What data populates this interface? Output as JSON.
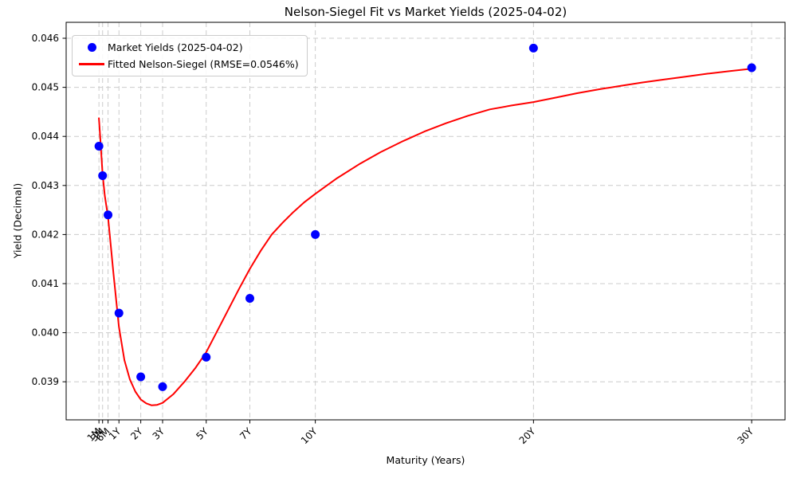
{
  "figure": {
    "background_color": "#ffffff",
    "title": "Nelson-Siegel Fit vs Market Yields (2025-04-02)",
    "xlabel": "Maturity (Years)",
    "ylabel": "Yield (Decimal)"
  },
  "legend": {
    "position": "upper left",
    "entries": [
      {
        "label": "Market Yields (2025-04-02)",
        "marker": "dot",
        "color": "#0000ff"
      },
      {
        "label": "Fitted Nelson-Siegel (RMSE=0.0546%)",
        "marker": "line",
        "color": "#ff0000"
      }
    ]
  },
  "chart_data": {
    "type": "scatter",
    "title": "Nelson-Siegel Fit vs Market Yields (2025-04-02)",
    "xlabel": "Maturity (Years)",
    "ylabel": "Yield (Decimal)",
    "grid": true,
    "grid_color": "#cccccc",
    "spine_color": "#000000",
    "xlim": [
      -1.42,
      31.53
    ],
    "ylim": [
      0.038224,
      0.046325
    ],
    "x_ticks": [
      {
        "label": "1M",
        "years": 0.0833
      },
      {
        "label": "3M",
        "years": 0.25
      },
      {
        "label": "6M",
        "years": 0.5
      },
      {
        "label": "1Y",
        "years": 1
      },
      {
        "label": "2Y",
        "years": 2
      },
      {
        "label": "3Y",
        "years": 3
      },
      {
        "label": "5Y",
        "years": 5
      },
      {
        "label": "7Y",
        "years": 7
      },
      {
        "label": "10Y",
        "years": 10
      },
      {
        "label": "20Y",
        "years": 20
      },
      {
        "label": "30Y",
        "years": 30
      }
    ],
    "y_ticks": [
      {
        "label": "0.039",
        "value": 0.039
      },
      {
        "label": "0.040",
        "value": 0.04
      },
      {
        "label": "0.041",
        "value": 0.041
      },
      {
        "label": "0.042",
        "value": 0.042
      },
      {
        "label": "0.043",
        "value": 0.043
      },
      {
        "label": "0.044",
        "value": 0.044
      },
      {
        "label": "0.045",
        "value": 0.045
      },
      {
        "label": "0.046",
        "value": 0.046
      }
    ],
    "series": [
      {
        "name": "Market Yields (2025-04-02)",
        "type": "scatter",
        "color": "#0000ff",
        "marker_radius": 5.5,
        "points": [
          {
            "maturity": "1M",
            "years": 0.0833,
            "yield": 0.0438
          },
          {
            "maturity": "3M",
            "years": 0.25,
            "yield": 0.0432
          },
          {
            "maturity": "6M",
            "years": 0.5,
            "yield": 0.0424
          },
          {
            "maturity": "1Y",
            "years": 1,
            "yield": 0.0404
          },
          {
            "maturity": "2Y",
            "years": 2,
            "yield": 0.0391
          },
          {
            "maturity": "3Y",
            "years": 3,
            "yield": 0.0389
          },
          {
            "maturity": "5Y",
            "years": 5,
            "yield": 0.0395
          },
          {
            "maturity": "7Y",
            "years": 7,
            "yield": 0.0407
          },
          {
            "maturity": "10Y",
            "years": 10,
            "yield": 0.042
          },
          {
            "maturity": "20Y",
            "years": 20,
            "yield": 0.0458
          },
          {
            "maturity": "30Y",
            "years": 30,
            "yield": 0.0454
          }
        ]
      },
      {
        "name": "Fitted Nelson-Siegel (RMSE=0.0546%)",
        "type": "line",
        "color": "#ff0000",
        "line_width": 2,
        "points": [
          [
            0.083,
            0.04437
          ],
          [
            0.15,
            0.04392
          ],
          [
            0.25,
            0.04323
          ],
          [
            0.35,
            0.04279
          ],
          [
            0.5,
            0.04235
          ],
          [
            0.75,
            0.0412
          ],
          [
            1.0,
            0.04012
          ],
          [
            1.25,
            0.03944
          ],
          [
            1.5,
            0.03905
          ],
          [
            1.75,
            0.0388
          ],
          [
            2.0,
            0.03864
          ],
          [
            2.25,
            0.03856
          ],
          [
            2.5,
            0.03852
          ],
          [
            2.75,
            0.03853
          ],
          [
            3.0,
            0.03857
          ],
          [
            3.5,
            0.03875
          ],
          [
            4.0,
            0.039
          ],
          [
            4.5,
            0.03928
          ],
          [
            5.0,
            0.0396
          ],
          [
            5.5,
            0.04003
          ],
          [
            6.0,
            0.04046
          ],
          [
            6.5,
            0.04089
          ],
          [
            7.0,
            0.0413
          ],
          [
            7.5,
            0.04167
          ],
          [
            8.0,
            0.042
          ],
          [
            8.5,
            0.04224
          ],
          [
            9.0,
            0.04246
          ],
          [
            9.5,
            0.04266
          ],
          [
            10.0,
            0.04283
          ],
          [
            11.0,
            0.04315
          ],
          [
            12.0,
            0.04343
          ],
          [
            13.0,
            0.04368
          ],
          [
            14.0,
            0.0439
          ],
          [
            15.0,
            0.0441
          ],
          [
            16.0,
            0.04427
          ],
          [
            17.0,
            0.04442
          ],
          [
            18.0,
            0.04455
          ],
          [
            19.0,
            0.04463
          ],
          [
            20.0,
            0.0447
          ],
          [
            21.0,
            0.04479
          ],
          [
            22.0,
            0.04488
          ],
          [
            23.0,
            0.04496
          ],
          [
            24.0,
            0.04503
          ],
          [
            25.0,
            0.0451
          ],
          [
            26.0,
            0.04516
          ],
          [
            27.0,
            0.04522
          ],
          [
            28.0,
            0.04528
          ],
          [
            29.0,
            0.04533
          ],
          [
            30.0,
            0.04538
          ]
        ]
      }
    ]
  }
}
